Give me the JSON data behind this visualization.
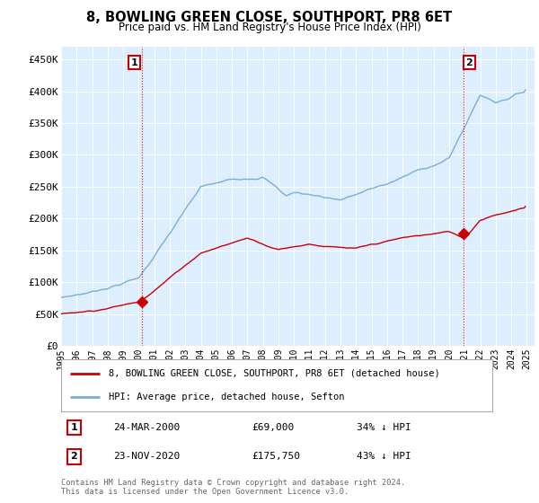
{
  "title": "8, BOWLING GREEN CLOSE, SOUTHPORT, PR8 6ET",
  "subtitle": "Price paid vs. HM Land Registry's House Price Index (HPI)",
  "ylabel_ticks": [
    "£0",
    "£50K",
    "£100K",
    "£150K",
    "£200K",
    "£250K",
    "£300K",
    "£350K",
    "£400K",
    "£450K"
  ],
  "ytick_values": [
    0,
    50000,
    100000,
    150000,
    200000,
    250000,
    300000,
    350000,
    400000,
    450000
  ],
  "ylim": [
    0,
    470000
  ],
  "xlim_start": 1995.0,
  "xlim_end": 2025.5,
  "hpi_color": "#7aaed6",
  "price_color": "#cc0000",
  "sale1_year": 2000.23,
  "sale1_price": 69000,
  "sale1_label": "1",
  "sale2_year": 2020.9,
  "sale2_price": 175750,
  "sale2_label": "2",
  "legend_line1": "8, BOWLING GREEN CLOSE, SOUTHPORT, PR8 6ET (detached house)",
  "legend_line2": "HPI: Average price, detached house, Sefton",
  "note1_label": "1",
  "note1_date": "24-MAR-2000",
  "note1_price": "£69,000",
  "note1_hpi": "34% ↓ HPI",
  "note2_label": "2",
  "note2_date": "23-NOV-2020",
  "note2_price": "£175,750",
  "note2_hpi": "43% ↓ HPI",
  "footer": "Contains HM Land Registry data © Crown copyright and database right 2024.\nThis data is licensed under the Open Government Licence v3.0.",
  "bg_color": "#ffffff",
  "plot_bg_color": "#ddeeff",
  "shade_color": "#ddeeff"
}
